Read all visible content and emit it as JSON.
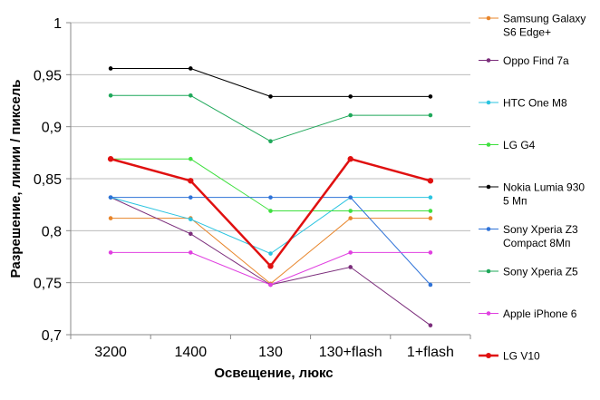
{
  "chart_data": {
    "type": "line",
    "title": "",
    "xlabel": "Освещение,  люкс",
    "ylabel": "Разрешение,  линии / пиксель",
    "categories": [
      "3200",
      "1400",
      "130",
      "130+flash",
      "1+flash"
    ],
    "ylim": [
      0.7,
      1.0
    ],
    "yticks": [
      0.7,
      0.75,
      0.8,
      0.85,
      0.9,
      0.95,
      1
    ],
    "ytick_labels": [
      "0,7",
      "0,75",
      "0,8",
      "0,85",
      "0,9",
      "0,95",
      "1"
    ],
    "grid": "horizontal",
    "legend_position": "right",
    "series": [
      {
        "name": "Samsung Galaxy S6 Edge+",
        "legend_lines": [
          "Samsung Galaxy",
          "S6 Edge+"
        ],
        "color": "#e8852a",
        "width": 1,
        "values": [
          0.812,
          0.812,
          0.749,
          0.812,
          0.812
        ]
      },
      {
        "name": "Oppo Find 7a",
        "legend_lines": [
          "Oppo Find 7a"
        ],
        "color": "#7b2d7b",
        "width": 1,
        "values": [
          0.832,
          0.797,
          0.748,
          0.765,
          0.709
        ]
      },
      {
        "name": "HTC One M8",
        "legend_lines": [
          "HTC One M8"
        ],
        "color": "#2bc4e0",
        "width": 1,
        "values": [
          0.832,
          0.811,
          0.778,
          0.832,
          0.832
        ]
      },
      {
        "name": "LG G4",
        "legend_lines": [
          "LG G4"
        ],
        "color": "#3fe03f",
        "width": 1,
        "values": [
          0.869,
          0.869,
          0.819,
          0.819,
          0.819
        ]
      },
      {
        "name": "Nokia Lumia 930 5 Мп",
        "legend_lines": [
          "Nokia Lumia 930",
          "5 Мп"
        ],
        "color": "#000000",
        "width": 1,
        "values": [
          0.956,
          0.956,
          0.929,
          0.929,
          0.929
        ]
      },
      {
        "name": "Sony Xperia Z3 Compact 8Мп",
        "legend_lines": [
          "Sony Xperia Z3",
          "Compact 8Мп"
        ],
        "color": "#2f73d8",
        "width": 1,
        "values": [
          0.832,
          0.832,
          0.832,
          0.832,
          0.748
        ]
      },
      {
        "name": "Sony Xperia Z5",
        "legend_lines": [
          "Sony Xperia Z5"
        ],
        "color": "#1fa85a",
        "width": 1,
        "values": [
          0.93,
          0.93,
          0.886,
          0.911,
          0.911
        ]
      },
      {
        "name": "Apple iPhone 6",
        "legend_lines": [
          "Apple iPhone 6"
        ],
        "color": "#e040e0",
        "width": 1,
        "values": [
          0.779,
          0.779,
          0.748,
          0.779,
          0.779
        ]
      },
      {
        "name": "LG V10",
        "legend_lines": [
          "LG V10"
        ],
        "color": "#e01010",
        "width": 2.5,
        "values": [
          0.869,
          0.848,
          0.766,
          0.869,
          0.848
        ]
      }
    ]
  }
}
